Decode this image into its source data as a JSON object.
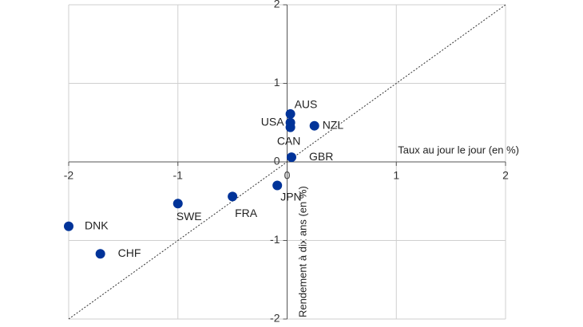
{
  "chart_data": {
    "type": "scatter",
    "labels": [
      "AUS",
      "USA",
      "CAN",
      "NZL",
      "GBR",
      "JPN",
      "FRA",
      "SWE",
      "DNK",
      "CHF"
    ],
    "x": [
      0.03,
      0.03,
      0.03,
      0.25,
      0.04,
      -0.09,
      -0.5,
      -1.0,
      -2.0,
      -1.71
    ],
    "values": [
      0.61,
      0.5,
      0.44,
      0.46,
      0.06,
      -0.3,
      -0.44,
      -0.53,
      -0.82,
      -1.17
    ],
    "color": "#003399",
    "xlim": [
      -2,
      2
    ],
    "ylim": [
      -2,
      2
    ],
    "xticks": [
      -2,
      -1,
      0,
      1,
      2
    ],
    "yticks": [
      -2,
      -1,
      0,
      1,
      2
    ],
    "x_label": "Taux au jour le jour (en %)",
    "y_label": "Rendement à dix ans (en %)",
    "grid": true
  }
}
